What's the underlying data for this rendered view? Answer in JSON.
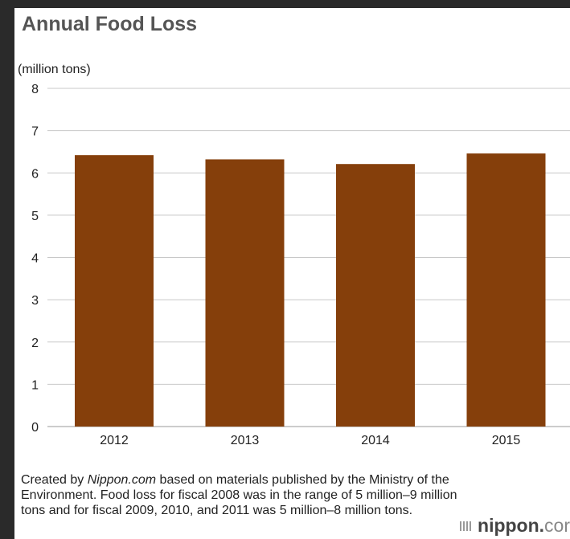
{
  "chart_data": {
    "type": "bar",
    "title": "Annual Food Loss",
    "ylabel": "(million tons)",
    "xlabel": "",
    "categories": [
      "2012",
      "2013",
      "2014",
      "2015"
    ],
    "values": [
      6.42,
      6.32,
      6.21,
      6.46
    ],
    "ylim": [
      0,
      8
    ],
    "yticks": [
      "0",
      "1",
      "2",
      "3",
      "4",
      "5",
      "6",
      "7",
      "8"
    ],
    "grid": true,
    "bar_color": "#853f0b"
  },
  "note": {
    "prefix": "Created by ",
    "source": "Nippon.com",
    "suffix": " based on materials published by the Ministry of the Environment. Food loss for fiscal 2008 was in the range of 5 million–9 million tons and for fiscal 2009, 2010, and 2011 was 5 million–8 million tons."
  },
  "logo": {
    "text": "nippon.",
    "suffix": "cor"
  }
}
